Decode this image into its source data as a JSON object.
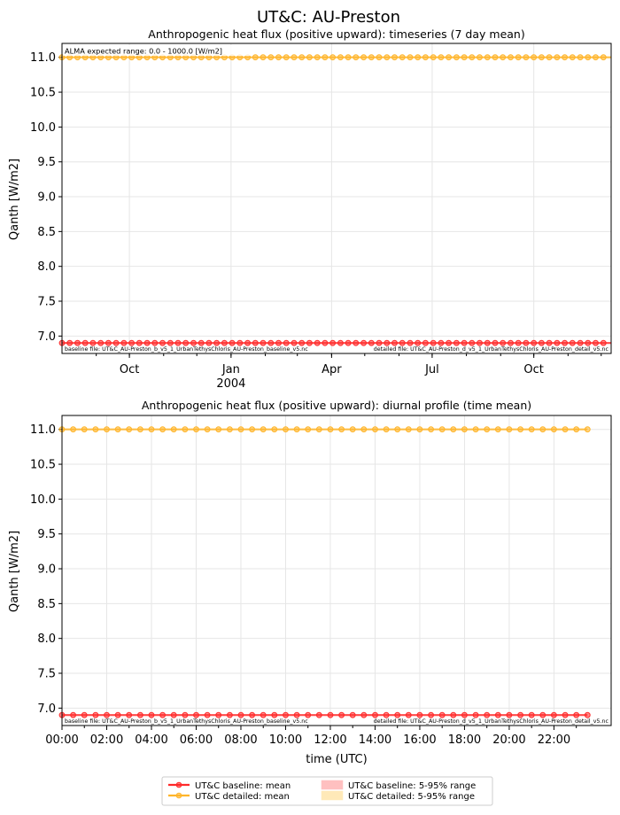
{
  "figure_title": "UT&C: AU-Preston",
  "colors": {
    "baseline": "#ff2a2a",
    "detailed": "#ffb52a",
    "baseline_band": "#ffc0c0",
    "detailed_band": "#ffe9b8",
    "grid": "#e6e6e6"
  },
  "chart_data": [
    {
      "type": "line",
      "title": "Anthropogenic heat flux (positive upward): timeseries (7 day mean)",
      "ylabel": "Qanth [W/m2]",
      "xlabel": "",
      "ylim": [
        6.75,
        11.2
      ],
      "yticks": [
        "7.0",
        "7.5",
        "8.0",
        "8.5",
        "9.0",
        "9.5",
        "10.0",
        "10.5",
        "11.0"
      ],
      "xlim": [
        "2003-08-01",
        "2004-12-10"
      ],
      "xticks": [
        {
          "x": "2003-10-01",
          "label": "Oct",
          "sublabel": ""
        },
        {
          "x": "2004-01-01",
          "label": "Jan",
          "sublabel": "2004"
        },
        {
          "x": "2004-04-01",
          "label": "Apr",
          "sublabel": ""
        },
        {
          "x": "2004-07-01",
          "label": "Jul",
          "sublabel": ""
        },
        {
          "x": "2004-10-01",
          "label": "Oct",
          "sublabel": ""
        }
      ],
      "series": [
        {
          "name": "UT&C baseline: mean",
          "x_start": "2003-08-01",
          "x_step_days": 7,
          "n": 71,
          "y": 6.9
        },
        {
          "name": "UT&C detailed: mean",
          "x_start": "2003-08-01",
          "x_step_days": 7,
          "n": 71,
          "y": 11.0
        }
      ],
      "annotation": "ALMA expected range: 0.0 - 1000.0 [W/m2]",
      "baseline_file": "baseline file: UT&C_AU-Preston_b_v5_1_UrbanTethysChloris_AU-Preston_baseline_v5.nc",
      "detailed_file": "detailed file: UT&C_AU-Preston_d_v5_1_UrbanTethysChloris_AU-Preston_detail_v5.nc"
    },
    {
      "type": "line",
      "title": "Anthropogenic heat flux (positive upward): diurnal profile (time mean)",
      "ylabel": "Qanth [W/m2]",
      "xlabel": "time (UTC)",
      "ylim": [
        6.75,
        11.2
      ],
      "yticks": [
        "7.0",
        "7.5",
        "8.0",
        "8.5",
        "9.0",
        "9.5",
        "10.0",
        "10.5",
        "11.0"
      ],
      "xlim": [
        "00:00",
        "23:30"
      ],
      "xticks": [
        "00:00",
        "02:00",
        "04:00",
        "06:00",
        "08:00",
        "10:00",
        "12:00",
        "14:00",
        "16:00",
        "18:00",
        "20:00",
        "22:00"
      ],
      "series": [
        {
          "name": "UT&C baseline: mean",
          "x_start_hours": 0,
          "x_step_hours": 0.5,
          "n": 48,
          "y": 6.9
        },
        {
          "name": "UT&C detailed: mean",
          "x_start_hours": 0,
          "x_step_hours": 0.5,
          "n": 48,
          "y": 11.0
        }
      ],
      "baseline_file": "baseline file: UT&C_AU-Preston_b_v5_1_UrbanTethysChloris_AU-Preston_baseline_v5.nc",
      "detailed_file": "detailed file: UT&C_AU-Preston_d_v5_1_UrbanTethysChloris_AU-Preston_detail_v5.nc"
    }
  ],
  "legend": {
    "placement": "bottom-center",
    "items": [
      {
        "label": "UT&C baseline: mean",
        "kind": "line",
        "color_key": "baseline"
      },
      {
        "label": "UT&C detailed: mean",
        "kind": "line",
        "color_key": "detailed"
      },
      {
        "label": "UT&C baseline: 5-95% range",
        "kind": "band",
        "color_key": "baseline_band"
      },
      {
        "label": "UT&C detailed: 5-95% range",
        "kind": "band",
        "color_key": "detailed_band"
      }
    ]
  }
}
